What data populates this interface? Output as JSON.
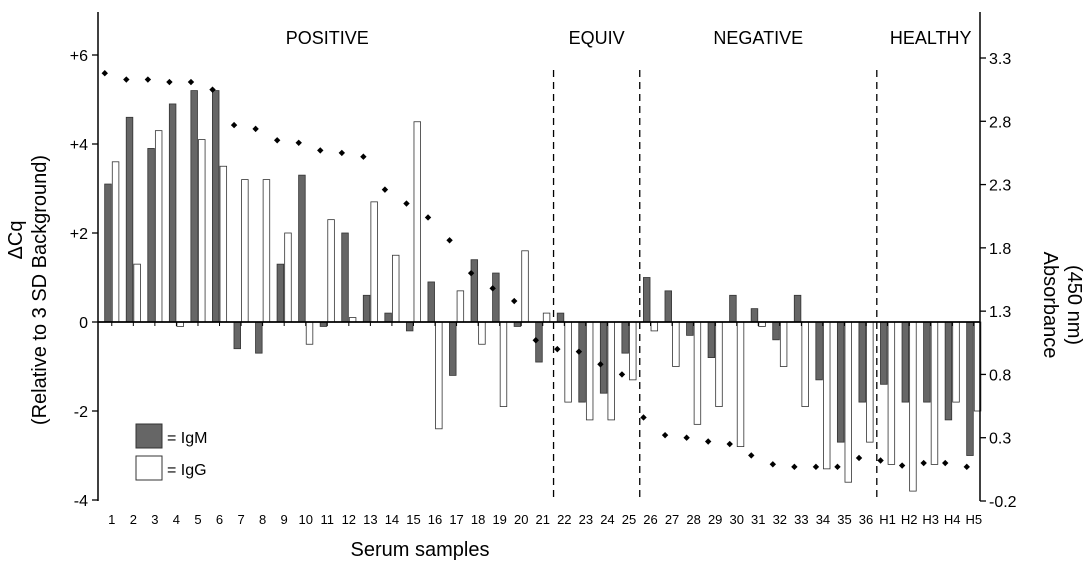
{
  "chart_data": {
    "type": "bar",
    "xlabel": "Serum samples",
    "ylabel_left_line1": "ΔCq",
    "ylabel_left_line2": "(Relative to 3 SD Background)",
    "ylabel_right_line1": "Absorbance",
    "ylabel_right_line2": "(450 nm)",
    "left_axis": {
      "ylim": [
        -4,
        7
      ],
      "ticks": [
        -4,
        -2,
        0,
        2,
        4,
        6
      ],
      "tick_labels": [
        "-4",
        "-2",
        "0",
        "+2",
        "+4",
        "+6"
      ]
    },
    "right_axis": {
      "ylim": [
        -0.2,
        3.5
      ],
      "ticks": [
        -0.2,
        0.3,
        0.8,
        1.3,
        1.8,
        2.3,
        2.8,
        3.3
      ],
      "tick_labels": [
        "-0.2",
        "0.3",
        "0.8",
        "1.3",
        "1.8",
        "2.3",
        "2.8",
        "3.3"
      ]
    },
    "categories": [
      "1",
      "2",
      "3",
      "4",
      "5",
      "6",
      "7",
      "8",
      "9",
      "10",
      "11",
      "12",
      "13",
      "14",
      "15",
      "16",
      "17",
      "18",
      "19",
      "20",
      "21",
      "22",
      "23",
      "24",
      "25",
      "26",
      "27",
      "28",
      "29",
      "30",
      "31",
      "32",
      "33",
      "34",
      "35",
      "36",
      "H1",
      "H2",
      "H3",
      "H4",
      "H5"
    ],
    "series": [
      {
        "name": "= IgM",
        "axis": "left",
        "color": "#666666",
        "values": [
          3.1,
          4.6,
          3.9,
          4.9,
          5.2,
          5.2,
          -0.6,
          -0.7,
          1.3,
          3.3,
          -0.1,
          2.0,
          0.6,
          0.2,
          -0.2,
          0.9,
          -1.2,
          1.4,
          1.1,
          -0.1,
          -0.9,
          0.2,
          -1.8,
          -1.6,
          -0.7,
          1.0,
          0.7,
          -0.3,
          -0.8,
          0.6,
          0.3,
          -0.4,
          0.6,
          -1.3,
          -2.7,
          -1.8,
          -1.4,
          -1.8,
          -1.8,
          -2.2,
          -3.0
        ]
      },
      {
        "name": "= IgG",
        "axis": "left",
        "color": "#ffffff",
        "values": [
          3.6,
          1.3,
          4.3,
          -0.1,
          4.1,
          3.5,
          3.2,
          3.2,
          2.0,
          -0.5,
          2.3,
          0.1,
          2.7,
          1.5,
          4.5,
          -2.4,
          0.7,
          -0.5,
          -1.9,
          1.6,
          0.2,
          -1.8,
          -2.2,
          -2.2,
          -1.3,
          -0.2,
          -1.0,
          -2.3,
          -1.9,
          -2.8,
          -0.1,
          -1.0,
          -1.9,
          -3.3,
          -3.6,
          -2.7,
          -3.2,
          -3.8,
          -3.2,
          -1.8,
          -2.0
        ]
      },
      {
        "name": "Absorbance",
        "axis": "right",
        "type": "scatter",
        "color": "#000000",
        "values": [
          3.18,
          3.13,
          3.13,
          3.11,
          3.11,
          3.05,
          2.77,
          2.74,
          2.65,
          2.63,
          2.57,
          2.55,
          2.52,
          2.26,
          2.15,
          2.04,
          1.86,
          1.6,
          1.48,
          1.38,
          1.07,
          1.0,
          0.98,
          0.88,
          0.8,
          0.46,
          0.32,
          0.3,
          0.27,
          0.25,
          0.16,
          0.09,
          0.07,
          0.07,
          0.07,
          0.14,
          0.12,
          0.08,
          0.1,
          0.1,
          0.07
        ]
      }
    ],
    "group_labels": [
      {
        "text": "POSITIVE",
        "start": 0,
        "end": 20
      },
      {
        "text": "EQUIV",
        "start": 21,
        "end": 24
      },
      {
        "text": "NEGATIVE",
        "start": 25,
        "end": 35
      },
      {
        "text": "HEALTHY",
        "start": 36,
        "end": 40
      }
    ],
    "dividers_after": [
      20,
      24,
      35
    ],
    "legend": {
      "position": "bottom-left",
      "items": [
        "= IgM",
        "= IgG"
      ]
    }
  }
}
